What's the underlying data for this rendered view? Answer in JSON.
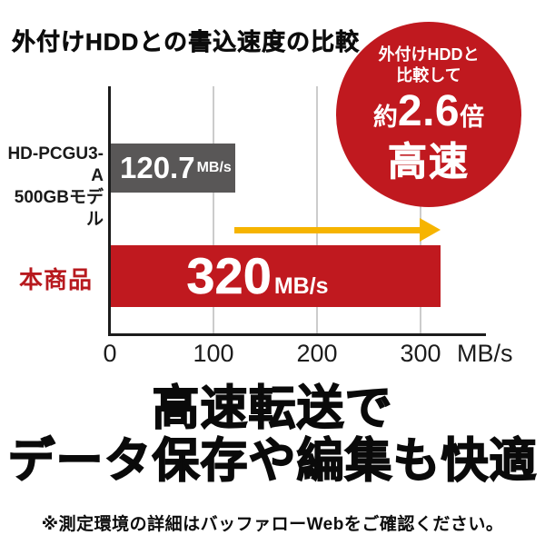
{
  "title": "外付けHDDとの書込速度の比較",
  "badge": {
    "line1": "外付けHDDと",
    "line2": "比較して",
    "ratio_prefix": "約",
    "ratio_value": "2.6",
    "ratio_suffix": "倍",
    "label": "高速",
    "bg_color": "#c0191f"
  },
  "chart_data": {
    "type": "bar",
    "orientation": "horizontal",
    "title": "外付けHDDとの書込速度の比較",
    "categories": [
      "HD-PCGU3-A 500GBモデル",
      "本商品"
    ],
    "values": [
      120.7,
      320
    ],
    "unit": "MB/s",
    "x_ticks": [
      0,
      100,
      200,
      300
    ],
    "xlim": [
      0,
      365
    ],
    "xlabel": "MB/s",
    "grid": true,
    "bar_colors": [
      "#595757",
      "#c0191f"
    ],
    "annotations": [
      "外付けHDDと比較して約2.6倍高速"
    ]
  },
  "bars": {
    "hdd": {
      "label_line1": "HD-PCGU3-A",
      "label_line2": "500GBモデル",
      "value": "120.7",
      "unit": "MB/s"
    },
    "product": {
      "label": "本商品",
      "value": "320",
      "unit": "MB/s"
    }
  },
  "axis": {
    "ticks": [
      "0",
      "100",
      "200",
      "300"
    ],
    "unit": "MB/s"
  },
  "headline": {
    "line1": "高速転送で",
    "line2": "データ保存や編集も快適"
  },
  "footnote": "※測定環境の詳細はバッファローWebをご確認ください。",
  "colors": {
    "red": "#c0191f",
    "dark_gray": "#595757",
    "yellow": "#f6b400",
    "gridline": "#cccccc",
    "text": "#111111"
  }
}
